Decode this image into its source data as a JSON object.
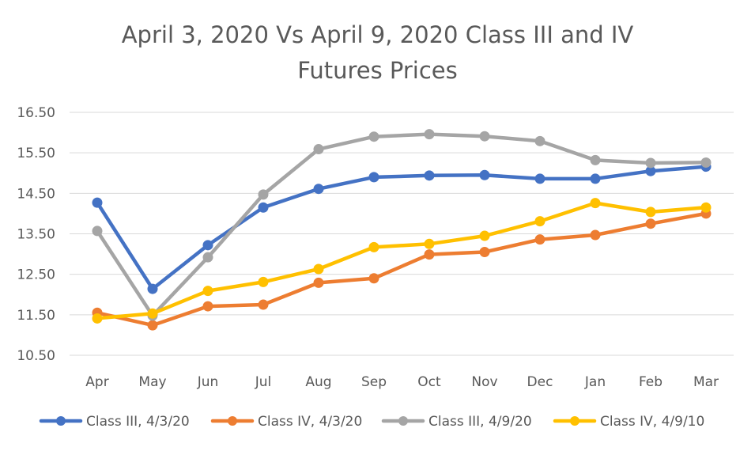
{
  "chart_data": {
    "type": "line",
    "title_line1": "April 3, 2020 Vs April 9, 2020 Class III and IV",
    "title_line2": "Futures Prices",
    "xlabel": "",
    "ylabel": "",
    "categories": [
      "Apr",
      "May",
      "Jun",
      "Jul",
      "Aug",
      "Sep",
      "Oct",
      "Nov",
      "Dec",
      "Jan",
      "Feb",
      "Mar"
    ],
    "y_ticks": [
      "16.50",
      "15.50",
      "14.50",
      "13.50",
      "12.50",
      "11.50",
      "10.50"
    ],
    "ylim": [
      10.5,
      16.5
    ],
    "grid": "horizontal",
    "legend_position": "bottom",
    "series": [
      {
        "name": "Class III, 4/3/20",
        "color": "#4472C4",
        "values": [
          14.27,
          12.14,
          13.22,
          14.15,
          14.61,
          14.9,
          14.94,
          14.95,
          14.86,
          14.86,
          15.05,
          15.16
        ]
      },
      {
        "name": "Class IV, 4/3/20",
        "color": "#ED7D31",
        "values": [
          11.55,
          11.24,
          11.71,
          11.75,
          12.29,
          12.4,
          12.99,
          13.05,
          13.36,
          13.47,
          13.75,
          14.0
        ]
      },
      {
        "name": "Class III, 4/9/20",
        "color": "#A5A5A5",
        "values": [
          13.57,
          11.48,
          12.92,
          14.47,
          15.59,
          15.9,
          15.96,
          15.91,
          15.79,
          15.32,
          15.25,
          15.26
        ]
      },
      {
        "name": "Class IV, 4/9/10",
        "color": "#FFC000",
        "values": [
          11.41,
          11.53,
          12.09,
          12.31,
          12.63,
          13.17,
          13.25,
          13.45,
          13.81,
          14.26,
          14.04,
          14.15
        ]
      }
    ]
  }
}
